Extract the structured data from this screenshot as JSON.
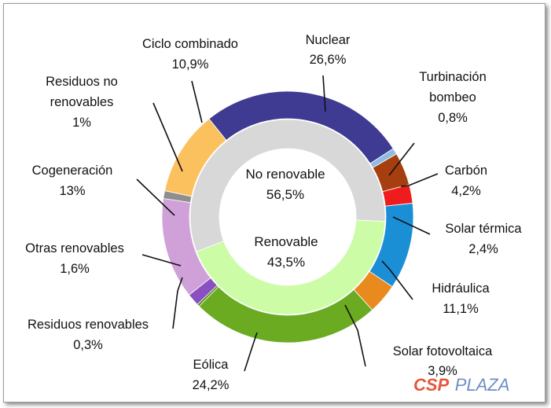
{
  "chart_data": {
    "type": "donut",
    "title": "",
    "outer_ring": [
      {
        "name": "Nuclear",
        "value": 26.6,
        "label": "26,6%",
        "color": "#3f3a92"
      },
      {
        "name": "Turbinación bombeo",
        "value": 0.8,
        "label": "0,8%",
        "color": "#8fbde2"
      },
      {
        "name": "Carbón",
        "value": 4.2,
        "label": "4,2%",
        "color": "#a53f0f"
      },
      {
        "name": "Solar térmica",
        "value": 2.4,
        "label": "2,4%",
        "color": "#ee1c1c"
      },
      {
        "name": "Hidráulica",
        "value": 11.1,
        "label": "11,1%",
        "color": "#1b8fd6"
      },
      {
        "name": "Solar fotovoltaica",
        "value": 3.9,
        "label": "3,9%",
        "color": "#e88a1e"
      },
      {
        "name": "Eólica",
        "value": 24.2,
        "label": "24,2%",
        "color": "#6aab22"
      },
      {
        "name": "Residuos renovables",
        "value": 0.3,
        "label": "0,3%",
        "color": "#4e8c1a"
      },
      {
        "name": "Otras renovables",
        "value": 1.6,
        "label": "1,6%",
        "color": "#8a4fc0"
      },
      {
        "name": "Cogeneración",
        "value": 13,
        "label": "13%",
        "color": "#cfa1d8"
      },
      {
        "name": "Residuos no renovables",
        "value": 1,
        "label": "1%",
        "color": "#8e8e8e"
      },
      {
        "name": "Ciclo combinado",
        "value": 10.9,
        "label": "10,9%",
        "color": "#fbc15e"
      }
    ],
    "inner_ring": [
      {
        "name": "No renovable",
        "value": 56.5,
        "label": "56,5%",
        "color": "#d8d8d8"
      },
      {
        "name": "Renovable",
        "value": 43.5,
        "label": "43,5%",
        "color": "#ccfca6"
      }
    ]
  },
  "labels": {
    "nuclear": {
      "name": "Nuclear",
      "value": "26,6%"
    },
    "turbinacion": {
      "name_line1": "Turbinación",
      "name_line2": "bombeo",
      "value": "0,8%"
    },
    "carbon": {
      "name": "Carbón",
      "value": "4,2%"
    },
    "solar_termica": {
      "name": "Solar térmica",
      "value": "2,4%"
    },
    "hidraulica": {
      "name": "Hidráulica",
      "value": "11,1%"
    },
    "solar_fotovoltaica": {
      "name": "Solar fotovoltaica",
      "value": "3,9%"
    },
    "eolica": {
      "name": "Eólica",
      "value": "24,2%"
    },
    "residuos_renovables": {
      "name": "Residuos renovables",
      "value": "0,3%"
    },
    "otras_renovables": {
      "name": "Otras renovables",
      "value": "1,6%"
    },
    "cogeneracion": {
      "name": "Cogeneración",
      "value": "13%"
    },
    "residuos_no_renovables": {
      "name_line1": "Residuos no",
      "name_line2": "renovables",
      "value": "1%"
    },
    "ciclo_combinado": {
      "name": "Ciclo combinado",
      "value": "10,9%"
    },
    "no_renovable": {
      "name": "No renovable",
      "value": "56,5%"
    },
    "renovable": {
      "name": "Renovable",
      "value": "43,5%"
    }
  },
  "watermark": {
    "part1": "CSP",
    "part2": "PLAZA",
    "color1": "#e8563a",
    "color2": "#6d8fc2"
  }
}
